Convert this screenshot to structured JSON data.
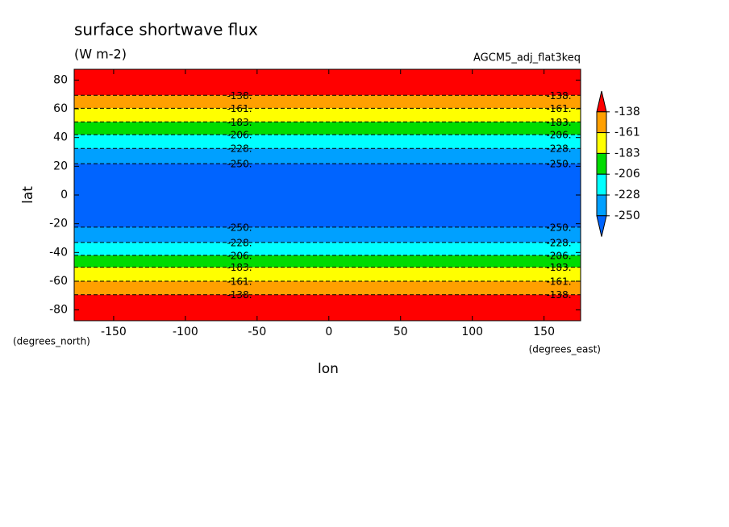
{
  "chart_data": {
    "type": "contour",
    "title": "surface shortwave flux",
    "subtitle": "(W m-2)",
    "annotation": "AGCM5_adj_flat3keq",
    "x_label": "lon",
    "y_label": "lat",
    "x_unit": "(degrees_east)",
    "y_unit": "(degrees_north)",
    "xlim": [
      -177.5,
      175.5
    ],
    "ylim": [
      -87.5,
      87.5
    ],
    "xticks": [
      -150,
      -100,
      -50,
      0,
      50,
      100,
      150
    ],
    "yticks": [
      -80,
      -60,
      -40,
      -20,
      0,
      20,
      40,
      60,
      80
    ],
    "levels": [
      -138,
      -161,
      -183,
      -206,
      -228,
      -250
    ],
    "contour_labels": [
      "-138.",
      "-161.",
      "-183.",
      "-206.",
      "-228.",
      "-250."
    ],
    "north_lats": [
      69.4,
      60.4,
      50.9,
      42,
      32.4,
      21.8
    ],
    "south_lats": [
      -69.4,
      -60,
      -50.3,
      -42,
      -33,
      -22.4
    ],
    "colors": [
      "#ff0000",
      "#ffa000",
      "#ffff00",
      "#00dc00",
      "#00ffff",
      "#00a0ff",
      "#0064ff"
    ]
  }
}
